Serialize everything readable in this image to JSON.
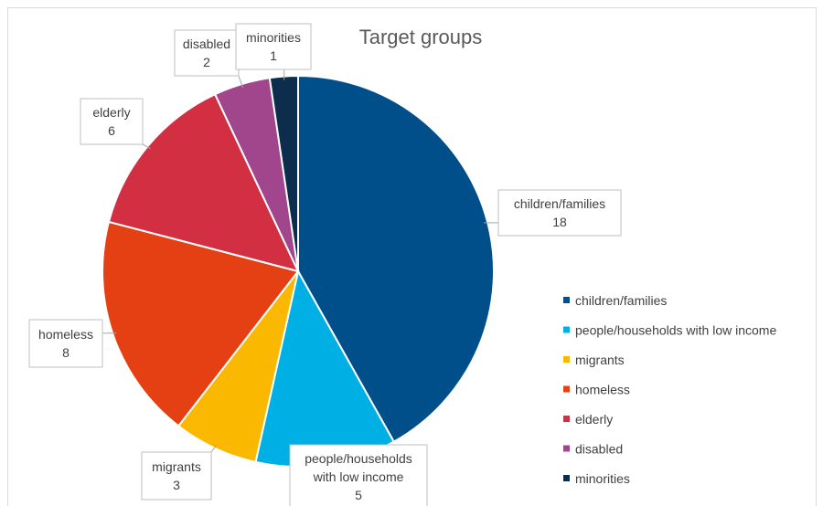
{
  "chart_data": {
    "type": "pie",
    "title": "Target groups",
    "legend_position": "right",
    "slices": [
      {
        "label": "children/families",
        "value": 18,
        "color": "#004f8b",
        "callout": [
          "children/families",
          "18"
        ]
      },
      {
        "label": "people/households with low income",
        "value": 5,
        "color": "#00b0e4",
        "callout": [
          "people/households",
          "with low income",
          "5"
        ]
      },
      {
        "label": "migrants",
        "value": 3,
        "color": "#fbb800",
        "callout": [
          "migrants",
          "3"
        ]
      },
      {
        "label": "homeless",
        "value": 8,
        "color": "#e44014",
        "callout": [
          "homeless",
          "8"
        ]
      },
      {
        "label": "elderly",
        "value": 6,
        "color": "#d22f43",
        "callout": [
          "elderly",
          "6"
        ]
      },
      {
        "label": "disabled",
        "value": 2,
        "color": "#a1458d",
        "callout": [
          "disabled",
          "2"
        ]
      },
      {
        "label": "minorities",
        "value": 1,
        "color": "#0c2d4b",
        "callout": [
          "minorities",
          "1"
        ]
      }
    ]
  }
}
